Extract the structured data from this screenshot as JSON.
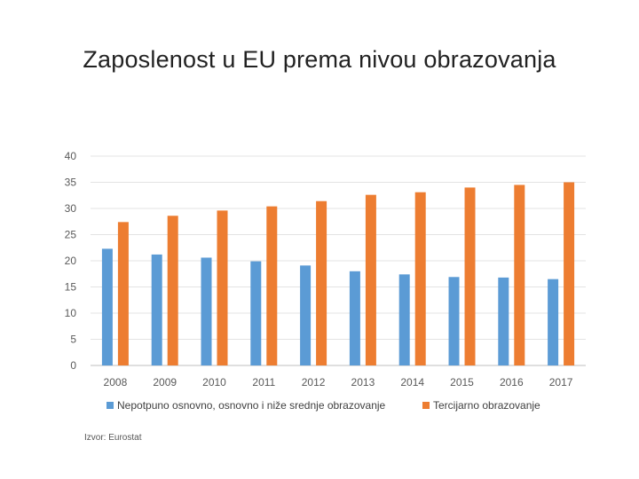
{
  "slide": {
    "title": "Zaposlenost u EU prema nivou obrazovanja",
    "source": "Izvor: Eurostat"
  },
  "chart_data": {
    "type": "bar",
    "title": "",
    "xlabel": "",
    "ylabel": "",
    "categories": [
      "2008",
      "2009",
      "2010",
      "2011",
      "2012",
      "2013",
      "2014",
      "2015",
      "2016",
      "2017"
    ],
    "series": [
      {
        "name": "Nepotpuno osnovno, osnovno i niže srednje obrazovanje",
        "color": "#5B9BD5",
        "values": [
          22.3,
          21.2,
          20.6,
          19.9,
          19.1,
          18.0,
          17.4,
          16.9,
          16.8,
          16.5
        ]
      },
      {
        "name": "Tercijarno obrazovanje",
        "color": "#ED7D31",
        "values": [
          27.4,
          28.6,
          29.6,
          30.4,
          31.4,
          32.6,
          33.1,
          34.0,
          34.5,
          35.0
        ]
      }
    ],
    "ylim": [
      0,
      40
    ],
    "yticks": [
      0,
      5,
      10,
      15,
      20,
      25,
      30,
      35,
      40
    ],
    "grid": true,
    "legend": "bottom"
  }
}
